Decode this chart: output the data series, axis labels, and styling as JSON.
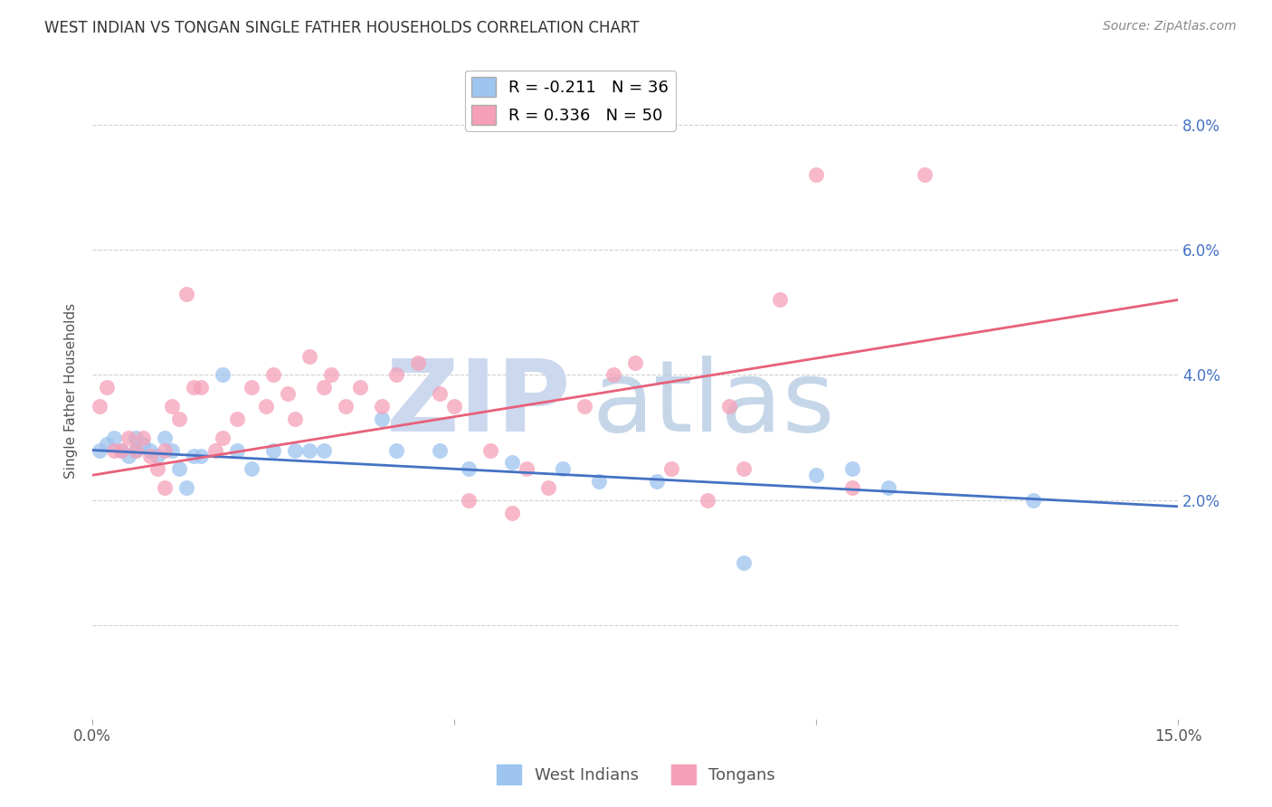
{
  "title": "WEST INDIAN VS TONGAN SINGLE FATHER HOUSEHOLDS CORRELATION CHART",
  "source": "Source: ZipAtlas.com",
  "ylabel": "Single Father Households",
  "y_ticks": [
    0.0,
    0.02,
    0.04,
    0.06,
    0.08
  ],
  "y_tick_labels": [
    "",
    "2.0%",
    "4.0%",
    "6.0%",
    "8.0%"
  ],
  "x_min": 0.0,
  "x_max": 0.15,
  "y_min": -0.015,
  "y_max": 0.09,
  "west_indian_R": -0.211,
  "west_indian_N": 36,
  "tongan_R": 0.336,
  "tongan_N": 50,
  "west_indian_color": "#9ec4f0",
  "tongan_color": "#f5a0b8",
  "west_indian_line_color": "#4472C4",
  "tongan_line_color": "#e8607a",
  "background_color": "#ffffff",
  "wi_line_start_y": 0.028,
  "wi_line_end_y": 0.019,
  "to_line_start_y": 0.024,
  "to_line_end_y": 0.052,
  "west_indian_x": [
    0.001,
    0.002,
    0.003,
    0.004,
    0.005,
    0.006,
    0.006,
    0.007,
    0.008,
    0.009,
    0.01,
    0.011,
    0.012,
    0.013,
    0.014,
    0.015,
    0.018,
    0.02,
    0.022,
    0.025,
    0.028,
    0.03,
    0.032,
    0.04,
    0.042,
    0.048,
    0.052,
    0.058,
    0.065,
    0.07,
    0.078,
    0.09,
    0.1,
    0.105,
    0.11,
    0.13
  ],
  "west_indian_y": [
    0.028,
    0.029,
    0.03,
    0.028,
    0.027,
    0.03,
    0.028,
    0.029,
    0.028,
    0.027,
    0.03,
    0.028,
    0.025,
    0.022,
    0.027,
    0.027,
    0.04,
    0.028,
    0.025,
    0.028,
    0.028,
    0.028,
    0.028,
    0.033,
    0.028,
    0.028,
    0.025,
    0.026,
    0.025,
    0.023,
    0.023,
    0.01,
    0.024,
    0.025,
    0.022,
    0.02
  ],
  "tongan_x": [
    0.001,
    0.002,
    0.003,
    0.004,
    0.005,
    0.006,
    0.007,
    0.008,
    0.009,
    0.01,
    0.01,
    0.011,
    0.012,
    0.013,
    0.014,
    0.015,
    0.017,
    0.018,
    0.02,
    0.022,
    0.024,
    0.025,
    0.027,
    0.028,
    0.03,
    0.032,
    0.033,
    0.035,
    0.037,
    0.04,
    0.042,
    0.045,
    0.048,
    0.05,
    0.052,
    0.055,
    0.058,
    0.06,
    0.063,
    0.068,
    0.072,
    0.075,
    0.08,
    0.085,
    0.088,
    0.09,
    0.095,
    0.1,
    0.105,
    0.115
  ],
  "tongan_y": [
    0.035,
    0.038,
    0.028,
    0.028,
    0.03,
    0.028,
    0.03,
    0.027,
    0.025,
    0.028,
    0.022,
    0.035,
    0.033,
    0.053,
    0.038,
    0.038,
    0.028,
    0.03,
    0.033,
    0.038,
    0.035,
    0.04,
    0.037,
    0.033,
    0.043,
    0.038,
    0.04,
    0.035,
    0.038,
    0.035,
    0.04,
    0.042,
    0.037,
    0.035,
    0.02,
    0.028,
    0.018,
    0.025,
    0.022,
    0.035,
    0.04,
    0.042,
    0.025,
    0.02,
    0.035,
    0.025,
    0.052,
    0.072,
    0.022,
    0.072
  ]
}
